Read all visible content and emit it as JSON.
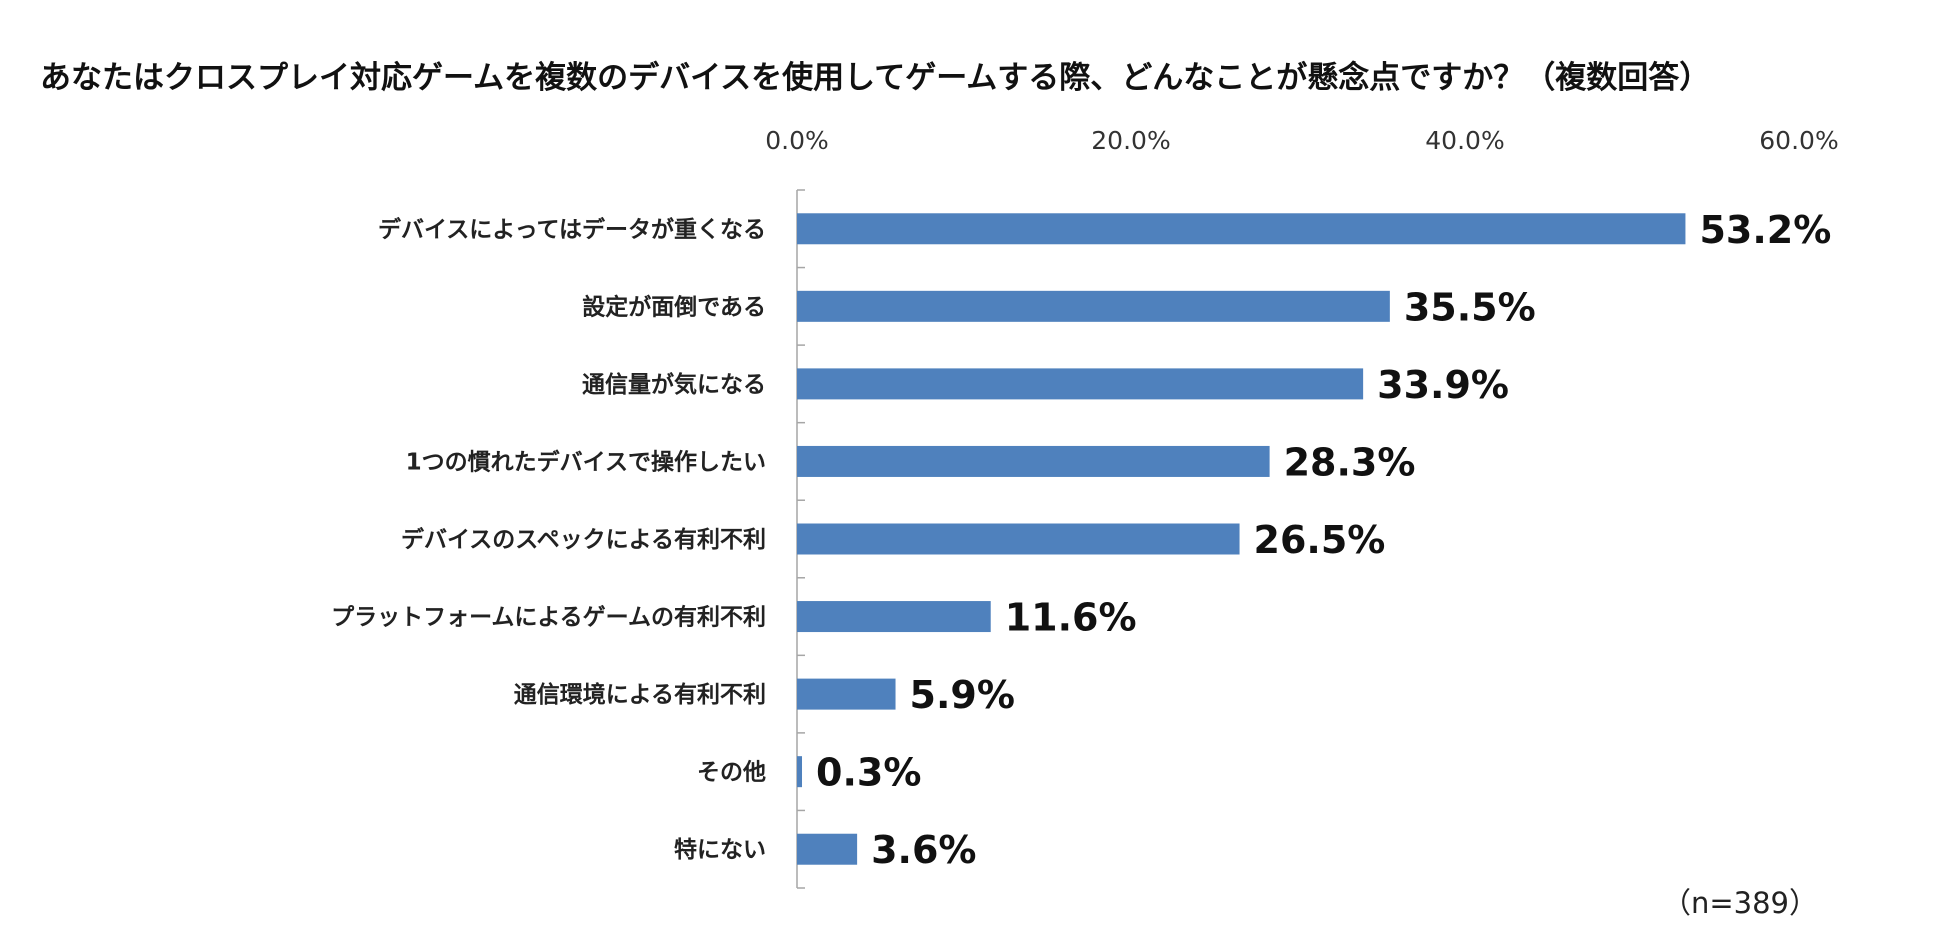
{
  "chart_data": {
    "type": "bar",
    "orientation": "horizontal",
    "title": "あなたはクロスプレイ対応ゲームを複数のデバイスを使用してゲームする際、どんなことが懸念点ですか？（複数回答）",
    "categories": [
      "デバイスによってはデータが重くなる",
      "設定が面倒である",
      "通信量が気になる",
      "1つの慣れたデバイスで操作したい",
      "デバイスのスペックによる有利不利",
      "プラットフォームによるゲームの有利不利",
      "通信環境による有利不利",
      "その他",
      "特にない"
    ],
    "values": [
      53.2,
      35.5,
      33.9,
      28.3,
      26.5,
      11.6,
      5.9,
      0.3,
      3.6
    ],
    "value_labels": [
      "53.2%",
      "35.5%",
      "33.9%",
      "28.3%",
      "26.5%",
      "11.6%",
      "5.9%",
      "0.3%",
      "3.6%"
    ],
    "xlim": [
      0,
      60
    ],
    "x_ticks": [
      "0.0%",
      "20.0%",
      "40.0%",
      "60.0%"
    ],
    "x_axis_position": "top",
    "grid": false,
    "legend": "none",
    "bar_color": "#4f81bd",
    "note": "（n=389）"
  }
}
